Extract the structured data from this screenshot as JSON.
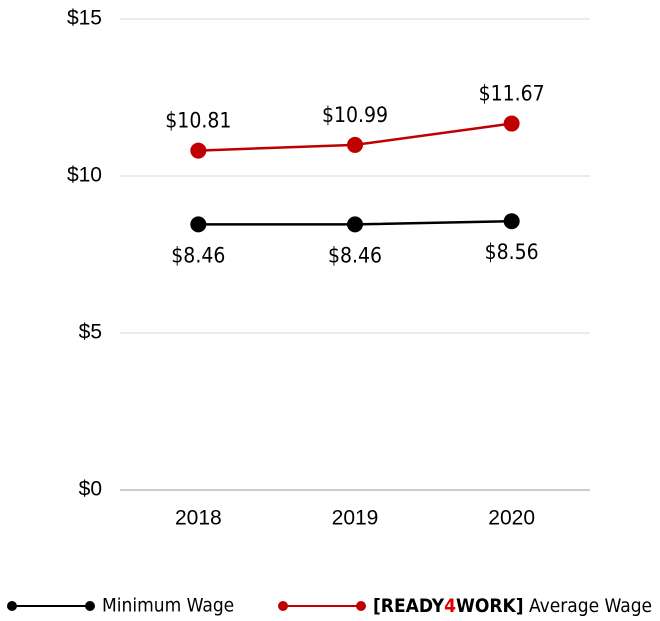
{
  "chart_data": {
    "type": "line",
    "categories": [
      "2018",
      "2019",
      "2020"
    ],
    "series": [
      {
        "name": "Minimum Wage",
        "color": "#000000",
        "values": [
          8.46,
          8.46,
          8.56
        ],
        "value_labels": [
          "$8.46",
          "$8.46",
          "$8.56"
        ]
      },
      {
        "name": "[READY4WORK] Average Wage",
        "color": "#c00000",
        "values": [
          10.81,
          10.99,
          11.67
        ],
        "value_labels": [
          "$10.81",
          "$10.99",
          "$11.67"
        ]
      }
    ],
    "ylim": [
      0,
      15
    ],
    "yticks": [
      {
        "value": 0,
        "label": "$0"
      },
      {
        "value": 5,
        "label": "$5"
      },
      {
        "value": 10,
        "label": "$10"
      },
      {
        "value": 15,
        "label": "$15"
      }
    ],
    "grid": true,
    "legend": "bottom"
  }
}
